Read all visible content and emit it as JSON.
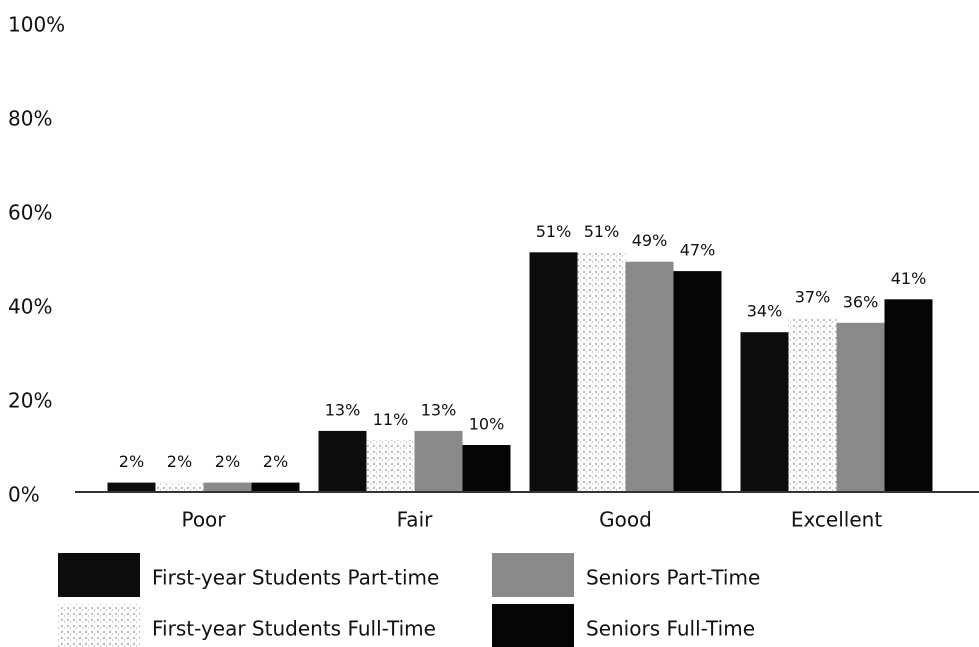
{
  "chart_data": {
    "type": "bar",
    "categories": [
      "Poor",
      "Fair",
      "Good",
      "Excellent"
    ],
    "series": [
      {
        "name": "First-year Students Part-time",
        "color": "#0d0d0d",
        "values": [
          2,
          13,
          51,
          34
        ],
        "value_labels": [
          "2%",
          "13%",
          "51%",
          "34%"
        ]
      },
      {
        "name": "First-year Students Full-Time",
        "color": "#e2e2e2",
        "values": [
          2,
          11,
          51,
          37
        ],
        "value_labels": [
          "2%",
          "11%",
          "51%",
          "37%"
        ]
      },
      {
        "name": "Seniors Part-Time",
        "color": "#8a8a8a",
        "values": [
          2,
          13,
          49,
          36
        ],
        "value_labels": [
          "2%",
          "13%",
          "49%",
          "36%"
        ]
      },
      {
        "name": "Seniors Full-Time",
        "color": "#050505",
        "values": [
          2,
          10,
          47,
          41
        ],
        "value_labels": [
          "2%",
          "10%",
          "47%",
          "41%"
        ]
      }
    ],
    "ylim": [
      0,
      100
    ],
    "yticks": [
      {
        "value": 0,
        "label": "0%"
      },
      {
        "value": 20,
        "label": "20%"
      },
      {
        "value": 40,
        "label": "40%"
      },
      {
        "value": 60,
        "label": "60%"
      },
      {
        "value": 80,
        "label": "80%"
      },
      {
        "value": 100,
        "label": "100%"
      }
    ],
    "grid": false,
    "legend": "bottom"
  }
}
